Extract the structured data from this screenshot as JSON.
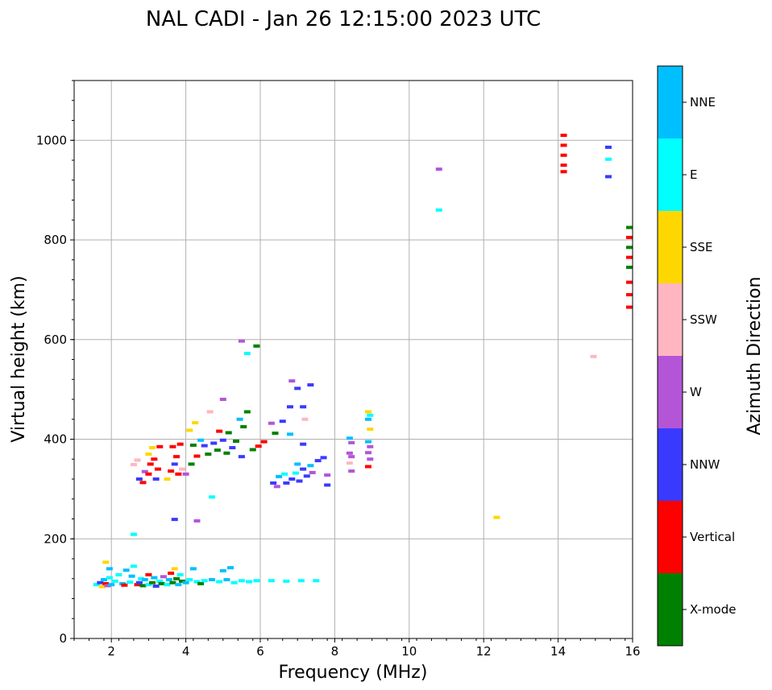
{
  "chart_data": {
    "type": "scatter",
    "title": "NAL CADI - Jan 26 12:15:00 2023 UTC",
    "xlabel": "Frequency (MHz)",
    "ylabel": "Virtual height (km)",
    "xlim": [
      1,
      16
    ],
    "ylim": [
      0,
      1120
    ],
    "xticks": [
      2,
      4,
      6,
      8,
      10,
      12,
      14,
      16
    ],
    "yticks": [
      0,
      200,
      400,
      600,
      800,
      1000
    ],
    "grid": true,
    "colorbar": {
      "label": "Azimuth Direction",
      "categories": [
        {
          "name": "X-mode",
          "color": "#008000"
        },
        {
          "name": "Vertical",
          "color": "#ff0000"
        },
        {
          "name": "NNW",
          "color": "#3a3aff"
        },
        {
          "name": "W",
          "color": "#b455d8"
        },
        {
          "name": "SSW",
          "color": "#ffb6c1"
        },
        {
          "name": "SSE",
          "color": "#ffd700"
        },
        {
          "name": "E",
          "color": "#00ffff"
        },
        {
          "name": "NNE",
          "color": "#00bfff"
        }
      ]
    },
    "points": [
      {
        "f": 1.6,
        "h": 108,
        "c": "E"
      },
      {
        "f": 1.7,
        "h": 112,
        "c": "NNW"
      },
      {
        "f": 1.75,
        "h": 104,
        "c": "SSE"
      },
      {
        "f": 1.8,
        "h": 118,
        "c": "NNE"
      },
      {
        "f": 1.85,
        "h": 110,
        "c": "Vertical"
      },
      {
        "f": 1.9,
        "h": 106,
        "c": "W"
      },
      {
        "f": 1.95,
        "h": 122,
        "c": "E"
      },
      {
        "f": 2.0,
        "h": 108,
        "c": "NNE"
      },
      {
        "f": 1.85,
        "h": 153,
        "c": "SSE"
      },
      {
        "f": 1.95,
        "h": 140,
        "c": "NNE"
      },
      {
        "f": 2.1,
        "h": 115,
        "c": "E"
      },
      {
        "f": 2.2,
        "h": 128,
        "c": "E"
      },
      {
        "f": 2.3,
        "h": 110,
        "c": "NNE"
      },
      {
        "f": 2.35,
        "h": 107,
        "c": "Vertical"
      },
      {
        "f": 2.4,
        "h": 137,
        "c": "NNE"
      },
      {
        "f": 2.5,
        "h": 113,
        "c": "E"
      },
      {
        "f": 2.55,
        "h": 125,
        "c": "NNE"
      },
      {
        "f": 2.6,
        "h": 145,
        "c": "E"
      },
      {
        "f": 2.6,
        "h": 209,
        "c": "E"
      },
      {
        "f": 2.7,
        "h": 108,
        "c": "Vertical"
      },
      {
        "f": 2.75,
        "h": 112,
        "c": "NNW"
      },
      {
        "f": 2.8,
        "h": 120,
        "c": "E"
      },
      {
        "f": 2.85,
        "h": 106,
        "c": "X-mode"
      },
      {
        "f": 2.9,
        "h": 118,
        "c": "NNE"
      },
      {
        "f": 3.0,
        "h": 108,
        "c": "E"
      },
      {
        "f": 3.0,
        "h": 128,
        "c": "Vertical"
      },
      {
        "f": 3.1,
        "h": 112,
        "c": "X-mode"
      },
      {
        "f": 3.15,
        "h": 122,
        "c": "NNE"
      },
      {
        "f": 3.2,
        "h": 105,
        "c": "NNW"
      },
      {
        "f": 3.3,
        "h": 115,
        "c": "E"
      },
      {
        "f": 3.35,
        "h": 110,
        "c": "X-mode"
      },
      {
        "f": 3.4,
        "h": 124,
        "c": "W"
      },
      {
        "f": 3.5,
        "h": 108,
        "c": "E"
      },
      {
        "f": 3.55,
        "h": 118,
        "c": "NNE"
      },
      {
        "f": 3.6,
        "h": 131,
        "c": "Vertical"
      },
      {
        "f": 3.65,
        "h": 112,
        "c": "X-mode"
      },
      {
        "f": 3.7,
        "h": 140,
        "c": "SSE"
      },
      {
        "f": 3.75,
        "h": 120,
        "c": "X-mode"
      },
      {
        "f": 3.8,
        "h": 108,
        "c": "NNE"
      },
      {
        "f": 3.85,
        "h": 128,
        "c": "E"
      },
      {
        "f": 3.9,
        "h": 115,
        "c": "X-mode"
      },
      {
        "f": 4.0,
        "h": 112,
        "c": "NNE"
      },
      {
        "f": 4.1,
        "h": 118,
        "c": "E"
      },
      {
        "f": 4.2,
        "h": 140,
        "c": "NNE"
      },
      {
        "f": 4.3,
        "h": 114,
        "c": "E"
      },
      {
        "f": 4.4,
        "h": 110,
        "c": "X-mode"
      },
      {
        "f": 4.5,
        "h": 116,
        "c": "E"
      },
      {
        "f": 4.7,
        "h": 118,
        "c": "NNE"
      },
      {
        "f": 4.9,
        "h": 114,
        "c": "E"
      },
      {
        "f": 5.0,
        "h": 136,
        "c": "NNE"
      },
      {
        "f": 5.1,
        "h": 118,
        "c": "NNE"
      },
      {
        "f": 5.2,
        "h": 142,
        "c": "NNE"
      },
      {
        "f": 5.3,
        "h": 112,
        "c": "E"
      },
      {
        "f": 5.5,
        "h": 116,
        "c": "E"
      },
      {
        "f": 5.7,
        "h": 114,
        "c": "E"
      },
      {
        "f": 5.9,
        "h": 116,
        "c": "E"
      },
      {
        "f": 6.3,
        "h": 116,
        "c": "E"
      },
      {
        "f": 6.7,
        "h": 115,
        "c": "E"
      },
      {
        "f": 7.1,
        "h": 116,
        "c": "E"
      },
      {
        "f": 7.5,
        "h": 116,
        "c": "E"
      },
      {
        "f": 2.6,
        "h": 349,
        "c": "SSW"
      },
      {
        "f": 2.7,
        "h": 358,
        "c": "SSW"
      },
      {
        "f": 2.75,
        "h": 320,
        "c": "NNW"
      },
      {
        "f": 2.85,
        "h": 313,
        "c": "Vertical"
      },
      {
        "f": 2.9,
        "h": 335,
        "c": "W"
      },
      {
        "f": 3.0,
        "h": 370,
        "c": "SSE"
      },
      {
        "f": 3.0,
        "h": 330,
        "c": "Vertical"
      },
      {
        "f": 3.05,
        "h": 350,
        "c": "Vertical"
      },
      {
        "f": 3.1,
        "h": 383,
        "c": "SSE"
      },
      {
        "f": 3.15,
        "h": 360,
        "c": "Vertical"
      },
      {
        "f": 3.2,
        "h": 320,
        "c": "NNW"
      },
      {
        "f": 3.25,
        "h": 340,
        "c": "Vertical"
      },
      {
        "f": 3.3,
        "h": 385,
        "c": "Vertical"
      },
      {
        "f": 3.5,
        "h": 320,
        "c": "SSE"
      },
      {
        "f": 3.6,
        "h": 336,
        "c": "Vertical"
      },
      {
        "f": 3.65,
        "h": 385,
        "c": "Vertical"
      },
      {
        "f": 3.7,
        "h": 350,
        "c": "NNW"
      },
      {
        "f": 3.75,
        "h": 365,
        "c": "Vertical"
      },
      {
        "f": 3.8,
        "h": 330,
        "c": "Vertical"
      },
      {
        "f": 3.85,
        "h": 390,
        "c": "Vertical"
      },
      {
        "f": 3.9,
        "h": 340,
        "c": "SSW"
      },
      {
        "f": 4.0,
        "h": 330,
        "c": "W"
      },
      {
        "f": 4.1,
        "h": 418,
        "c": "SSE"
      },
      {
        "f": 4.15,
        "h": 350,
        "c": "X-mode"
      },
      {
        "f": 4.2,
        "h": 388,
        "c": "X-mode"
      },
      {
        "f": 4.25,
        "h": 433,
        "c": "SSE"
      },
      {
        "f": 4.3,
        "h": 366,
        "c": "Vertical"
      },
      {
        "f": 4.4,
        "h": 398,
        "c": "NNE"
      },
      {
        "f": 4.5,
        "h": 387,
        "c": "NNW"
      },
      {
        "f": 4.6,
        "h": 370,
        "c": "X-mode"
      },
      {
        "f": 4.65,
        "h": 455,
        "c": "SSW"
      },
      {
        "f": 4.75,
        "h": 392,
        "c": "NNW"
      },
      {
        "f": 4.85,
        "h": 378,
        "c": "X-mode"
      },
      {
        "f": 4.9,
        "h": 416,
        "c": "Vertical"
      },
      {
        "f": 5.0,
        "h": 480,
        "c": "W"
      },
      {
        "f": 5.0,
        "h": 398,
        "c": "NNW"
      },
      {
        "f": 5.1,
        "h": 372,
        "c": "X-mode"
      },
      {
        "f": 5.15,
        "h": 413,
        "c": "X-mode"
      },
      {
        "f": 5.25,
        "h": 383,
        "c": "NNW"
      },
      {
        "f": 5.35,
        "h": 396,
        "c": "X-mode"
      },
      {
        "f": 5.45,
        "h": 440,
        "c": "NNE"
      },
      {
        "f": 5.5,
        "h": 365,
        "c": "NNW"
      },
      {
        "f": 5.55,
        "h": 425,
        "c": "X-mode"
      },
      {
        "f": 5.65,
        "h": 455,
        "c": "X-mode"
      },
      {
        "f": 5.8,
        "h": 379,
        "c": "X-mode"
      },
      {
        "f": 5.95,
        "h": 386,
        "c": "Vertical"
      },
      {
        "f": 6.1,
        "h": 395,
        "c": "Vertical"
      },
      {
        "f": 5.5,
        "h": 597,
        "c": "W"
      },
      {
        "f": 5.65,
        "h": 572,
        "c": "E"
      },
      {
        "f": 5.9,
        "h": 587,
        "c": "X-mode"
      },
      {
        "f": 6.3,
        "h": 432,
        "c": "W"
      },
      {
        "f": 6.4,
        "h": 412,
        "c": "X-mode"
      },
      {
        "f": 6.6,
        "h": 436,
        "c": "NNW"
      },
      {
        "f": 6.8,
        "h": 410,
        "c": "NNE"
      },
      {
        "f": 6.8,
        "h": 465,
        "c": "NNW"
      },
      {
        "f": 6.85,
        "h": 517,
        "c": "W"
      },
      {
        "f": 7.0,
        "h": 502,
        "c": "NNW"
      },
      {
        "f": 7.15,
        "h": 390,
        "c": "NNW"
      },
      {
        "f": 7.2,
        "h": 440,
        "c": "SSW"
      },
      {
        "f": 7.35,
        "h": 509,
        "c": "NNW"
      },
      {
        "f": 7.15,
        "h": 465,
        "c": "NNW"
      },
      {
        "f": 6.35,
        "h": 312,
        "c": "NNW"
      },
      {
        "f": 6.45,
        "h": 305,
        "c": "W"
      },
      {
        "f": 6.5,
        "h": 325,
        "c": "NNE"
      },
      {
        "f": 6.65,
        "h": 330,
        "c": "E"
      },
      {
        "f": 6.7,
        "h": 312,
        "c": "NNW"
      },
      {
        "f": 6.85,
        "h": 320,
        "c": "NNW"
      },
      {
        "f": 6.95,
        "h": 332,
        "c": "E"
      },
      {
        "f": 7.0,
        "h": 350,
        "c": "NNE"
      },
      {
        "f": 7.05,
        "h": 316,
        "c": "NNW"
      },
      {
        "f": 7.15,
        "h": 340,
        "c": "NNW"
      },
      {
        "f": 7.25,
        "h": 326,
        "c": "NNW"
      },
      {
        "f": 7.35,
        "h": 347,
        "c": "NNE"
      },
      {
        "f": 7.4,
        "h": 333,
        "c": "W"
      },
      {
        "f": 7.55,
        "h": 357,
        "c": "NNW"
      },
      {
        "f": 7.7,
        "h": 363,
        "c": "NNW"
      },
      {
        "f": 7.8,
        "h": 328,
        "c": "W"
      },
      {
        "f": 7.8,
        "h": 308,
        "c": "NNW"
      },
      {
        "f": 8.4,
        "h": 402,
        "c": "NNE"
      },
      {
        "f": 8.45,
        "h": 393,
        "c": "W"
      },
      {
        "f": 8.4,
        "h": 372,
        "c": "W"
      },
      {
        "f": 8.45,
        "h": 365,
        "c": "W"
      },
      {
        "f": 8.4,
        "h": 352,
        "c": "SSW"
      },
      {
        "f": 8.45,
        "h": 336,
        "c": "W"
      },
      {
        "f": 8.9,
        "h": 455,
        "c": "SSE"
      },
      {
        "f": 8.95,
        "h": 448,
        "c": "E"
      },
      {
        "f": 8.9,
        "h": 440,
        "c": "NNE"
      },
      {
        "f": 8.95,
        "h": 420,
        "c": "SSE"
      },
      {
        "f": 8.9,
        "h": 395,
        "c": "NNE"
      },
      {
        "f": 8.95,
        "h": 385,
        "c": "W"
      },
      {
        "f": 8.9,
        "h": 373,
        "c": "W"
      },
      {
        "f": 8.95,
        "h": 360,
        "c": "W"
      },
      {
        "f": 8.9,
        "h": 345,
        "c": "Vertical"
      },
      {
        "f": 3.7,
        "h": 239,
        "c": "NNW"
      },
      {
        "f": 4.3,
        "h": 236,
        "c": "W"
      },
      {
        "f": 4.7,
        "h": 284,
        "c": "E"
      },
      {
        "f": 10.8,
        "h": 942,
        "c": "W"
      },
      {
        "f": 10.8,
        "h": 860,
        "c": "E"
      },
      {
        "f": 12.35,
        "h": 243,
        "c": "SSE"
      },
      {
        "f": 14.15,
        "h": 1010,
        "c": "Vertical"
      },
      {
        "f": 14.15,
        "h": 990,
        "c": "Vertical"
      },
      {
        "f": 14.15,
        "h": 970,
        "c": "Vertical"
      },
      {
        "f": 14.15,
        "h": 950,
        "c": "Vertical"
      },
      {
        "f": 14.15,
        "h": 937,
        "c": "Vertical"
      },
      {
        "f": 15.35,
        "h": 986,
        "c": "NNW"
      },
      {
        "f": 15.35,
        "h": 962,
        "c": "E"
      },
      {
        "f": 15.35,
        "h": 927,
        "c": "NNW"
      },
      {
        "f": 14.95,
        "h": 566,
        "c": "SSW"
      },
      {
        "f": 15.96,
        "h": 825,
        "c": "X-mode"
      },
      {
        "f": 15.96,
        "h": 805,
        "c": "Vertical"
      },
      {
        "f": 15.96,
        "h": 785,
        "c": "X-mode"
      },
      {
        "f": 15.96,
        "h": 765,
        "c": "Vertical"
      },
      {
        "f": 15.96,
        "h": 745,
        "c": "X-mode"
      },
      {
        "f": 15.96,
        "h": 715,
        "c": "Vertical"
      },
      {
        "f": 15.96,
        "h": 690,
        "c": "Vertical"
      },
      {
        "f": 15.96,
        "h": 665,
        "c": "Vertical"
      }
    ]
  }
}
